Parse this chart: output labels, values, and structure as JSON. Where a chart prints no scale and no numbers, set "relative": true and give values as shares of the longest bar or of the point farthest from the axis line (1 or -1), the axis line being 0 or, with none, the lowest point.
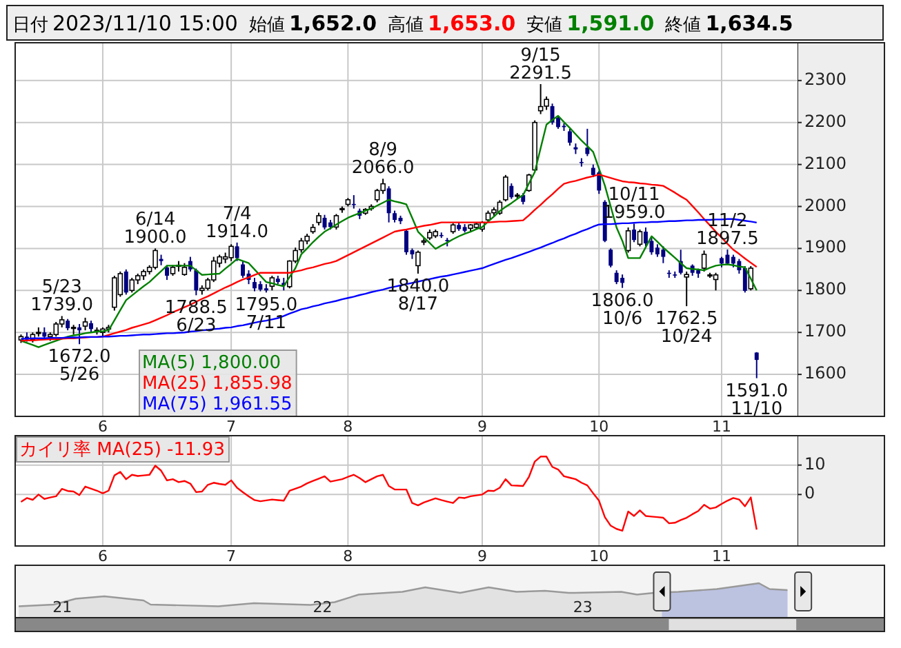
{
  "chart_data": [
    {
      "type": "other",
      "annotations": [
        "日付",
        "2023/11/10 15:00",
        "始値",
        "1,652.0",
        "高値",
        "1,653.0",
        "安値",
        "1,591.0",
        "終値",
        "1,634.5"
      ],
      "colors": [
        "#000000",
        "#000000",
        "#000000",
        "#000000",
        "#000000",
        "#ff0000",
        "#000000",
        "#008000",
        "#000000",
        "#000000"
      ]
    },
    {
      "type": "candlestick",
      "categories": [
        null,
        null,
        null,
        null,
        null,
        null,
        null,
        null,
        null,
        null,
        null,
        null,
        null,
        null,
        "6",
        null,
        null,
        null,
        null,
        null,
        null,
        null,
        null,
        null,
        null,
        null,
        null,
        null,
        null,
        null,
        null,
        null,
        null,
        null,
        null,
        null,
        "7",
        null,
        null,
        null,
        null,
        null,
        null,
        null,
        null,
        null,
        null,
        null,
        null,
        null,
        null,
        null,
        null,
        null,
        null,
        null,
        "8",
        null,
        null,
        null,
        null,
        null,
        null,
        null,
        null,
        null,
        null,
        null,
        null,
        null,
        null,
        null,
        null,
        null,
        null,
        null,
        null,
        null,
        null,
        "9",
        null,
        null,
        null,
        null,
        null,
        null,
        null,
        null,
        null,
        null,
        null,
        null,
        null,
        null,
        null,
        null,
        null,
        null,
        null,
        "10",
        null,
        null,
        null,
        null,
        null,
        null,
        null,
        null,
        null,
        null,
        null,
        null,
        null,
        null,
        null,
        null,
        null,
        null,
        null,
        null,
        "11",
        null,
        null,
        null,
        null,
        null,
        null
      ],
      "series": [
        {
          "type": "candlestick",
          "colors": [
            "#ffffff",
            "#000080",
            "#ffffff",
            "#ffffff",
            "#000080",
            "#ffffff",
            "#ffffff",
            "#ffffff",
            "#000080",
            "#ffffff",
            "#000080",
            "#ffffff",
            "#000080",
            "#ffffff",
            "#ffffff",
            "#ffffff",
            "#ffffff",
            "#ffffff",
            "#000080",
            "#ffffff",
            "#ffffff",
            "#ffffff",
            "#ffffff",
            "#ffffff",
            "#000080",
            "#000080",
            "#ffffff",
            "#ffffff",
            "#ffffff",
            "#000080",
            "#000080",
            "#ffffff",
            "#ffffff",
            "#ffffff",
            "#ffffff",
            "#ffffff",
            "#ffffff",
            "#000080",
            "#000080",
            "#000080",
            "#000080",
            "#000080",
            "#000080",
            "#ffffff",
            "#000080",
            "#000080",
            "#ffffff",
            "#ffffff",
            "#ffffff",
            "#ffffff",
            "#ffffff",
            "#ffffff",
            "#000080",
            "#000080",
            "#ffffff",
            "#ffffff",
            "#ffffff",
            "#000080",
            "#000080",
            "#ffffff",
            "#ffffff",
            "#ffffff",
            "#ffffff",
            "#000080",
            "#000080",
            "#000080",
            "#000080",
            "#000080",
            "#ffffff",
            "#ffffff",
            "#ffffff",
            "#ffffff",
            "#000080",
            "#000080",
            "#ffffff",
            "#000080",
            "#000080",
            "#ffffff",
            "#ffffff",
            "#ffffff",
            "#ffffff",
            "#ffffff",
            "#ffffff",
            "#ffffff",
            "#000080",
            "#ffffff",
            "#000080",
            "#ffffff",
            "#ffffff",
            "#ffffff",
            "#ffffff",
            "#000080",
            "#000080",
            "#000080",
            "#000080",
            "#000080",
            "#000080",
            "#000080",
            "#000080",
            "#000080",
            "#000080",
            "#000080",
            "#000080",
            "#000080",
            "#ffffff",
            "#000080",
            "#ffffff",
            "#000080",
            "#000080",
            "#000080",
            "#000080",
            "#000080",
            "#000080",
            "#000080",
            "#ffffff",
            "#000080",
            "#000080",
            "#ffffff",
            "#ffffff",
            "#ffffff",
            "#000080",
            "#000080",
            "#000080",
            "#000080",
            "#000080",
            "#ffffff",
            "#000080"
          ],
          "ohlc": [
            [
              1682,
              1695,
              1675,
              1690
            ],
            [
              1690,
              1700,
              1678,
              1683
            ],
            [
              1683,
              1700,
              1676,
              1695
            ],
            [
              1698,
              1712,
              1690,
              1700
            ],
            [
              1700,
              1712,
              1685,
              1690
            ],
            [
              1690,
              1700,
              1680,
              1695
            ],
            [
              1695,
              1725,
              1690,
              1720
            ],
            [
              1720,
              1739,
              1712,
              1730
            ],
            [
              1728,
              1732,
              1705,
              1710
            ],
            [
              1710,
              1718,
              1695,
              1712
            ],
            [
              1712,
              1720,
              1672,
              1705
            ],
            [
              1715,
              1735,
              1705,
              1725
            ],
            [
              1722,
              1728,
              1700,
              1708
            ],
            [
              1705,
              1712,
              1695,
              1705
            ],
            [
              1700,
              1712,
              1690,
              1708
            ],
            [
              1708,
              1718,
              1700,
              1712
            ],
            [
              1760,
              1835,
              1752,
              1830
            ],
            [
              1790,
              1845,
              1785,
              1840
            ],
            [
              1845,
              1850,
              1790,
              1795
            ],
            [
              1800,
              1830,
              1795,
              1825
            ],
            [
              1825,
              1840,
              1815,
              1835
            ],
            [
              1835,
              1850,
              1825,
              1845
            ],
            [
              1845,
              1860,
              1838,
              1855
            ],
            [
              1855,
              1900,
              1850,
              1895
            ],
            [
              1875,
              1885,
              1860,
              1870
            ],
            [
              1855,
              1860,
              1825,
              1835
            ],
            [
              1840,
              1860,
              1835,
              1855
            ],
            [
              1858,
              1870,
              1845,
              1860
            ],
            [
              1838,
              1865,
              1835,
              1855
            ],
            [
              1870,
              1880,
              1845,
              1850
            ],
            [
              1848,
              1852,
              1788.5,
              1800
            ],
            [
              1800,
              1812,
              1790,
              1805
            ],
            [
              1805,
              1830,
              1800,
              1825
            ],
            [
              1825,
              1880,
              1820,
              1870
            ],
            [
              1865,
              1885,
              1855,
              1880
            ],
            [
              1875,
              1890,
              1865,
              1880
            ],
            [
              1878,
              1910,
              1870,
              1905
            ],
            [
              1905,
              1914,
              1870,
              1877
            ],
            [
              1862,
              1870,
              1830,
              1835
            ],
            [
              1840,
              1848,
              1815,
              1825
            ],
            [
              1820,
              1830,
              1798,
              1805
            ],
            [
              1815,
              1822,
              1798,
              1802
            ],
            [
              1805,
              1815,
              1795,
              1800
            ],
            [
              1810,
              1835,
              1800,
              1830
            ],
            [
              1828,
              1835,
              1815,
              1820
            ],
            [
              1818,
              1830,
              1800,
              1812
            ],
            [
              1809,
              1872,
              1805,
              1870
            ],
            [
              1870,
              1902,
              1865,
              1895
            ],
            [
              1897,
              1925,
              1890,
              1918
            ],
            [
              1918,
              1935,
              1910,
              1929
            ],
            [
              1940,
              1958,
              1935,
              1950
            ],
            [
              1962,
              1985,
              1955,
              1978
            ],
            [
              1973,
              1980,
              1945,
              1950
            ],
            [
              1962,
              1968,
              1945,
              1951
            ],
            [
              1951,
              1982,
              1945,
              1978
            ],
            [
              1993,
              2000,
              1985,
              1995
            ],
            [
              2005,
              2020,
              2000,
              2016
            ],
            [
              2006,
              2027,
              1995,
              2005
            ],
            [
              1990,
              1995,
              1970,
              1978
            ],
            [
              1984,
              1996,
              1980,
              1993
            ],
            [
              1995,
              2005,
              1990,
              2000
            ],
            [
              2016,
              2042,
              2010,
              2038
            ],
            [
              2038,
              2066,
              2030,
              2054
            ],
            [
              2043,
              2048,
              1962,
              1984
            ],
            [
              1984,
              1990,
              1962,
              1968
            ],
            [
              1973,
              1978,
              1958,
              1965
            ],
            [
              1942,
              1945,
              1885,
              1891
            ],
            [
              1896,
              1900,
              1875,
              1886
            ],
            [
              1859,
              1895,
              1840,
              1891
            ],
            [
              1915,
              1925,
              1908,
              1918
            ],
            [
              1925,
              1945,
              1920,
              1938
            ],
            [
              1930,
              1945,
              1925,
              1940
            ],
            [
              1932,
              1938,
              1925,
              1930
            ],
            [
              1920,
              1925,
              1905,
              1918
            ],
            [
              1940,
              1960,
              1935,
              1956
            ],
            [
              1956,
              1962,
              1942,
              1946
            ],
            [
              1951,
              1958,
              1938,
              1942
            ],
            [
              1948,
              1958,
              1940,
              1956
            ],
            [
              1950,
              1962,
              1945,
              1958
            ],
            [
              1946,
              1965,
              1940,
              1962
            ],
            [
              1968,
              1990,
              1962,
              1984
            ],
            [
              1985,
              1998,
              1978,
              1992
            ],
            [
              1984,
              2015,
              1980,
              2010
            ],
            [
              2016,
              2075,
              2012,
              2070
            ],
            [
              2049,
              2055,
              2018,
              2022
            ],
            [
              2025,
              2032,
              2018,
              2027
            ],
            [
              2027,
              2032,
              2005,
              2011
            ],
            [
              2038,
              2078,
              2035,
              2075
            ],
            [
              2087,
              2205,
              2085,
              2200
            ],
            [
              2228,
              2291.5,
              2220,
              2238
            ],
            [
              2239,
              2262,
              2230,
              2255
            ],
            [
              2239,
              2245,
              2195,
              2200
            ],
            [
              2211,
              2215,
              2185,
              2189
            ],
            [
              2192,
              2198,
              2180,
              2189
            ],
            [
              2179,
              2185,
              2145,
              2152
            ],
            [
              2141,
              2150,
              2125,
              2136
            ],
            [
              2106,
              2115,
              2095,
              2104
            ],
            [
              2140,
              2185,
              2120,
              2125
            ],
            [
              2092,
              2100,
              2070,
              2075
            ],
            [
              2081,
              2085,
              2030,
              2038
            ],
            [
              2011,
              2015,
              1915,
              1918
            ],
            [
              1897,
              1900,
              1855,
              1859
            ],
            [
              1842,
              1848,
              1815,
              1820
            ],
            [
              1830,
              1838,
              1806,
              1818
            ],
            [
              1895,
              1950,
              1890,
              1942
            ],
            [
              1945,
              1959,
              1915,
              1920
            ],
            [
              1910,
              1945,
              1905,
              1940
            ],
            [
              1940,
              1950,
              1905,
              1912
            ],
            [
              1918,
              1925,
              1885,
              1891
            ],
            [
              1902,
              1910,
              1880,
              1886
            ],
            [
              1897,
              1905,
              1865,
              1880
            ],
            [
              1842,
              1848,
              1830,
              1840
            ],
            [
              1838,
              1845,
              1830,
              1837
            ],
            [
              1870,
              1897,
              1838,
              1842
            ],
            [
              1832,
              1845,
              1762.5,
              1838
            ],
            [
              1859,
              1862,
              1835,
              1842
            ],
            [
              1848,
              1852,
              1830,
              1840
            ],
            [
              1853,
              1895,
              1845,
              1886
            ],
            [
              1836,
              1842,
              1830,
              1837
            ],
            [
              1826,
              1842,
              1800,
              1837
            ],
            [
              1877,
              1880,
              1855,
              1864
            ],
            [
              1885,
              1897.5,
              1860,
              1864
            ],
            [
              1880,
              1885,
              1855,
              1864
            ],
            [
              1870,
              1875,
              1840,
              1848
            ],
            [
              1853,
              1858,
              1795,
              1799
            ],
            [
              1804,
              1858,
              1800,
              1853
            ],
            [
              1652,
              1653,
              1591,
              1634.5
            ]
          ],
          "value_labels": [
            null,
            null,
            null,
            null,
            null,
            null,
            null,
            "5/23\n1739.0",
            null,
            null,
            "1672.0\n5/26",
            null,
            null,
            null,
            null,
            null,
            null,
            null,
            null,
            null,
            null,
            null,
            null,
            "6/14\n1900.0",
            null,
            null,
            null,
            null,
            null,
            null,
            "1788.5\n6/23",
            null,
            null,
            null,
            null,
            null,
            null,
            "7/4\n1914.0",
            null,
            null,
            null,
            null,
            "1795.0\n7/11",
            null,
            null,
            null,
            null,
            null,
            null,
            null,
            null,
            null,
            null,
            null,
            null,
            null,
            null,
            null,
            null,
            null,
            null,
            null,
            "8/9\n2066.0",
            null,
            null,
            null,
            null,
            null,
            "1840.0\n8/17",
            null,
            null,
            null,
            null,
            null,
            null,
            null,
            null,
            null,
            null,
            null,
            null,
            null,
            null,
            null,
            null,
            null,
            null,
            null,
            null,
            "9/15\n2291.5",
            null,
            null,
            null,
            null,
            null,
            null,
            null,
            null,
            null,
            null,
            null,
            null,
            null,
            "1806.0\n10/6",
            null,
            "10/11\n1959.0",
            null,
            null,
            null,
            null,
            null,
            null,
            null,
            null,
            "1762.5\n10/24",
            null,
            null,
            null,
            null,
            null,
            null,
            "11/2\n1897.5",
            null,
            null,
            null,
            null,
            "1591.0\n11/10"
          ]
        },
        {
          "type": "line",
          "name": "MA(5)  1,800.00",
          "color": "#008000",
          "values": [
            1680,
            1675,
            1670,
            1665,
            1670,
            1675,
            1680,
            1685,
            1690,
            1693,
            1695,
            1698,
            1700,
            1702,
            1703,
            1705,
            1729,
            1753,
            1777,
            1788,
            1799,
            1810,
            1820,
            1833,
            1846,
            1859,
            1859,
            1859,
            1859,
            1859,
            1848,
            1837,
            1838,
            1839,
            1840,
            1852,
            1863,
            1875,
            1870,
            1865,
            1850,
            1835,
            1820,
            1817,
            1813,
            1810,
            1832,
            1853,
            1886,
            1900,
            1915,
            1928,
            1940,
            1948,
            1957,
            1965,
            1973,
            1979,
            1984,
            1990,
            1995,
            2002,
            2009,
            2016,
            2012,
            2009,
            2005,
            1973,
            1940,
            1926,
            1913,
            1899,
            1907,
            1914,
            1922,
            1929,
            1935,
            1940,
            1946,
            1951,
            1964,
            1976,
            1989,
            1999,
            2008,
            2018,
            2027,
            2055,
            2082,
            2139,
            2195,
            2206,
            2216,
            2201,
            2187,
            2172,
            2157,
            2144,
            2130,
            2090,
            2050,
            2000,
            1950,
            1918,
            1877,
            1877,
            1877,
            1903,
            1929,
            1916,
            1902,
            1890,
            1878,
            1865,
            1853,
            1851,
            1850,
            1848,
            1854,
            1859,
            1861,
            1862,
            1860,
            1857,
            1855,
            1828,
            1800
          ]
        },
        {
          "type": "line",
          "name": "MA(25)  1,855.98",
          "color": "#ff0000",
          "values": [
            1680,
            1681,
            1681,
            1682,
            1683,
            1684,
            1684,
            1685,
            1686,
            1686,
            1687,
            1688,
            1689,
            1689,
            1690,
            1694,
            1698,
            1702,
            1706,
            1711,
            1715,
            1719,
            1723,
            1729,
            1735,
            1741,
            1748,
            1754,
            1760,
            1766,
            1773,
            1780,
            1786,
            1793,
            1800,
            1807,
            1813,
            1820,
            1826,
            1831,
            1837,
            1842,
            1842,
            1842,
            1842,
            1842,
            1842,
            1845,
            1848,
            1852,
            1855,
            1859,
            1863,
            1866,
            1870,
            1877,
            1884,
            1891,
            1898,
            1905,
            1912,
            1919,
            1926,
            1933,
            1940,
            1943,
            1945,
            1948,
            1951,
            1954,
            1956,
            1959,
            1962,
            1962,
            1962,
            1962,
            1962,
            1962,
            1962,
            1962,
            1962,
            1963,
            1964,
            1964,
            1965,
            1966,
            1967,
            1979,
            1992,
            2004,
            2017,
            2029,
            2042,
            2054,
            2058,
            2061,
            2065,
            2069,
            2072,
            2076,
            2072,
            2068,
            2064,
            2060,
            2058,
            2057,
            2055,
            2054,
            2052,
            2051,
            2049,
            2041,
            2033,
            2024,
            2016,
            2001,
            1986,
            1970,
            1955,
            1940,
            1926,
            1911,
            1897,
            1887,
            1876,
            1866,
            1855.98
          ]
        },
        {
          "type": "line",
          "name": "MA(75)  1,961.55",
          "color": "#0000ff",
          "values": [
            1685,
            1685,
            1686,
            1686,
            1686,
            1687,
            1687,
            1687,
            1688,
            1688,
            1688,
            1689,
            1689,
            1689,
            1690,
            1690,
            1691,
            1692,
            1692,
            1693,
            1694,
            1695,
            1695,
            1696,
            1697,
            1698,
            1698,
            1699,
            1700,
            1702,
            1703,
            1705,
            1706,
            1708,
            1709,
            1711,
            1712,
            1715,
            1717,
            1720,
            1723,
            1726,
            1728,
            1731,
            1734,
            1739,
            1745,
            1750,
            1755,
            1758,
            1762,
            1765,
            1769,
            1772,
            1775,
            1779,
            1782,
            1785,
            1789,
            1792,
            1796,
            1799,
            1802,
            1806,
            1809,
            1812,
            1815,
            1818,
            1821,
            1824,
            1827,
            1830,
            1833,
            1835,
            1838,
            1841,
            1844,
            1847,
            1850,
            1853,
            1858,
            1863,
            1868,
            1873,
            1877,
            1882,
            1887,
            1892,
            1897,
            1902,
            1908,
            1913,
            1919,
            1924,
            1930,
            1935,
            1941,
            1946,
            1952,
            1957,
            1958,
            1958,
            1959,
            1960,
            1960,
            1961,
            1962,
            1962,
            1963,
            1963,
            1964,
            1965,
            1965,
            1966,
            1967,
            1967,
            1968,
            1968,
            1968,
            1969,
            1969,
            1970,
            1970,
            1968,
            1966,
            1964,
            1961.55
          ]
        }
      ],
      "ylim": [
        1500,
        2390
      ],
      "yticks": [
        1600,
        1700,
        1800,
        1900,
        2000,
        2100,
        2200,
        2300
      ],
      "grid": true,
      "legend": "bottom left"
    },
    {
      "type": "line",
      "categories": [
        null,
        null,
        null,
        null,
        null,
        null,
        null,
        null,
        null,
        null,
        null,
        null,
        null,
        null,
        "6",
        null,
        null,
        null,
        null,
        null,
        null,
        null,
        null,
        null,
        null,
        null,
        null,
        null,
        null,
        null,
        null,
        null,
        null,
        null,
        null,
        null,
        "7",
        null,
        null,
        null,
        null,
        null,
        null,
        null,
        null,
        null,
        null,
        null,
        null,
        null,
        null,
        null,
        null,
        null,
        null,
        null,
        "8",
        null,
        null,
        null,
        null,
        null,
        null,
        null,
        null,
        null,
        null,
        null,
        null,
        null,
        null,
        null,
        null,
        null,
        null,
        null,
        null,
        null,
        null,
        "9",
        null,
        null,
        null,
        null,
        null,
        null,
        null,
        null,
        null,
        null,
        null,
        null,
        null,
        null,
        null,
        null,
        null,
        null,
        null,
        "10",
        null,
        null,
        null,
        null,
        null,
        null,
        null,
        null,
        null,
        null,
        null,
        null,
        null,
        null,
        null,
        null,
        null,
        null,
        null,
        null,
        "11",
        null,
        null,
        null,
        null,
        null,
        null
      ],
      "series": [
        {
          "name": "カイリ率 MA(25)  -11.93",
          "color": "#ff0000",
          "values": [
            -2.5,
            -1.2,
            -1.8,
            0,
            -1.5,
            -1,
            -0.6,
            1.9,
            1.2,
            1,
            -0.2,
            2.7,
            2,
            1.3,
            0.4,
            1.3,
            6.5,
            7.7,
            5.2,
            6.7,
            6.3,
            6.5,
            6.7,
            9.8,
            8.1,
            4.8,
            5.2,
            4.2,
            4.6,
            3.7,
            0.8,
            1,
            3.3,
            4,
            3.6,
            3.3,
            4.8,
            2.3,
            0.8,
            -0.6,
            -1.9,
            -2.3,
            -2,
            -1.7,
            -1.9,
            -2.1,
            1.3,
            2,
            2.7,
            3.8,
            4.6,
            5.4,
            6.2,
            4.4,
            4.8,
            5.2,
            6,
            6.7,
            5.6,
            4.2,
            5.2,
            6.2,
            6.7,
            2.9,
            1.7,
            1.7,
            1.7,
            -2.9,
            -3.7,
            -2.7,
            -2,
            -1.3,
            -1.9,
            -2.4,
            -2.9,
            -1,
            -1.2,
            -0.6,
            -0.3,
            0,
            1.3,
            1.2,
            2.3,
            5.2,
            3.1,
            3,
            2.9,
            6,
            11.2,
            12.9,
            12.9,
            9.4,
            8.5,
            6.2,
            5.7,
            5.2,
            4,
            3.1,
            0.4,
            -2.1,
            -7.7,
            -10.6,
            -11.7,
            -12.3,
            -5.8,
            -7.3,
            -5.4,
            -7.3,
            -7.5,
            -7.7,
            -7.9,
            -9.8,
            -9.6,
            -8.7,
            -7.9,
            -6.7,
            -5.6,
            -3.5,
            -4.8,
            -4.4,
            -3.2,
            -2.1,
            -1.2,
            -1.7,
            -4,
            -1,
            -11.93
          ]
        }
      ],
      "ylim": [
        -17.5,
        20
      ],
      "yticks": [
        0,
        10
      ],
      "grid": true,
      "legend": "top left"
    },
    {
      "type": "area",
      "relative": true,
      "x": [
        "2020-11-01",
        "2020-12-20",
        "2021-01-20",
        "2021-03-01",
        "2021-04-25",
        "2021-05-05",
        "2021-08-08",
        "2021-09-27",
        "2021-12-15",
        "2022-01-18",
        "2022-02-21",
        "2022-04-23",
        "2022-05-25",
        "2022-07-13",
        "2022-08-22",
        "2022-09-30",
        "2022-11-09",
        "2022-12-12",
        "2022-12-21",
        "2023-02-24",
        "2023-03-18",
        "2023-04-11",
        "2023-05-15",
        "2023-07-08",
        "2023-09-05",
        "2023-09-20",
        "2023-10-15"
      ],
      "series": [
        {
          "color": "#999999",
          "values": [
            0.33,
            0.38,
            0.55,
            0.62,
            0.5,
            0.38,
            0.33,
            0.42,
            0.37,
            0.45,
            0.67,
            0.75,
            0.88,
            0.72,
            0.88,
            0.75,
            0.78,
            0.72,
            0.72,
            0.75,
            0.67,
            0.72,
            0.75,
            0.83,
            1,
            0.83,
            0.8
          ]
        }
      ],
      "xlim": [
        "2020-10-27",
        "2024-02-28"
      ],
      "xticks": [
        {
          "value": "2021-01-01",
          "label": "21"
        },
        {
          "value": "2022-01-01",
          "label": "22"
        },
        {
          "value": "2023-01-01",
          "label": "23"
        }
      ],
      "bands": [
        {
          "axis": "x",
          "from": "2023-04-22",
          "to": "2023-11-06",
          "color": "#b4c0f2"
        }
      ]
    }
  ]
}
